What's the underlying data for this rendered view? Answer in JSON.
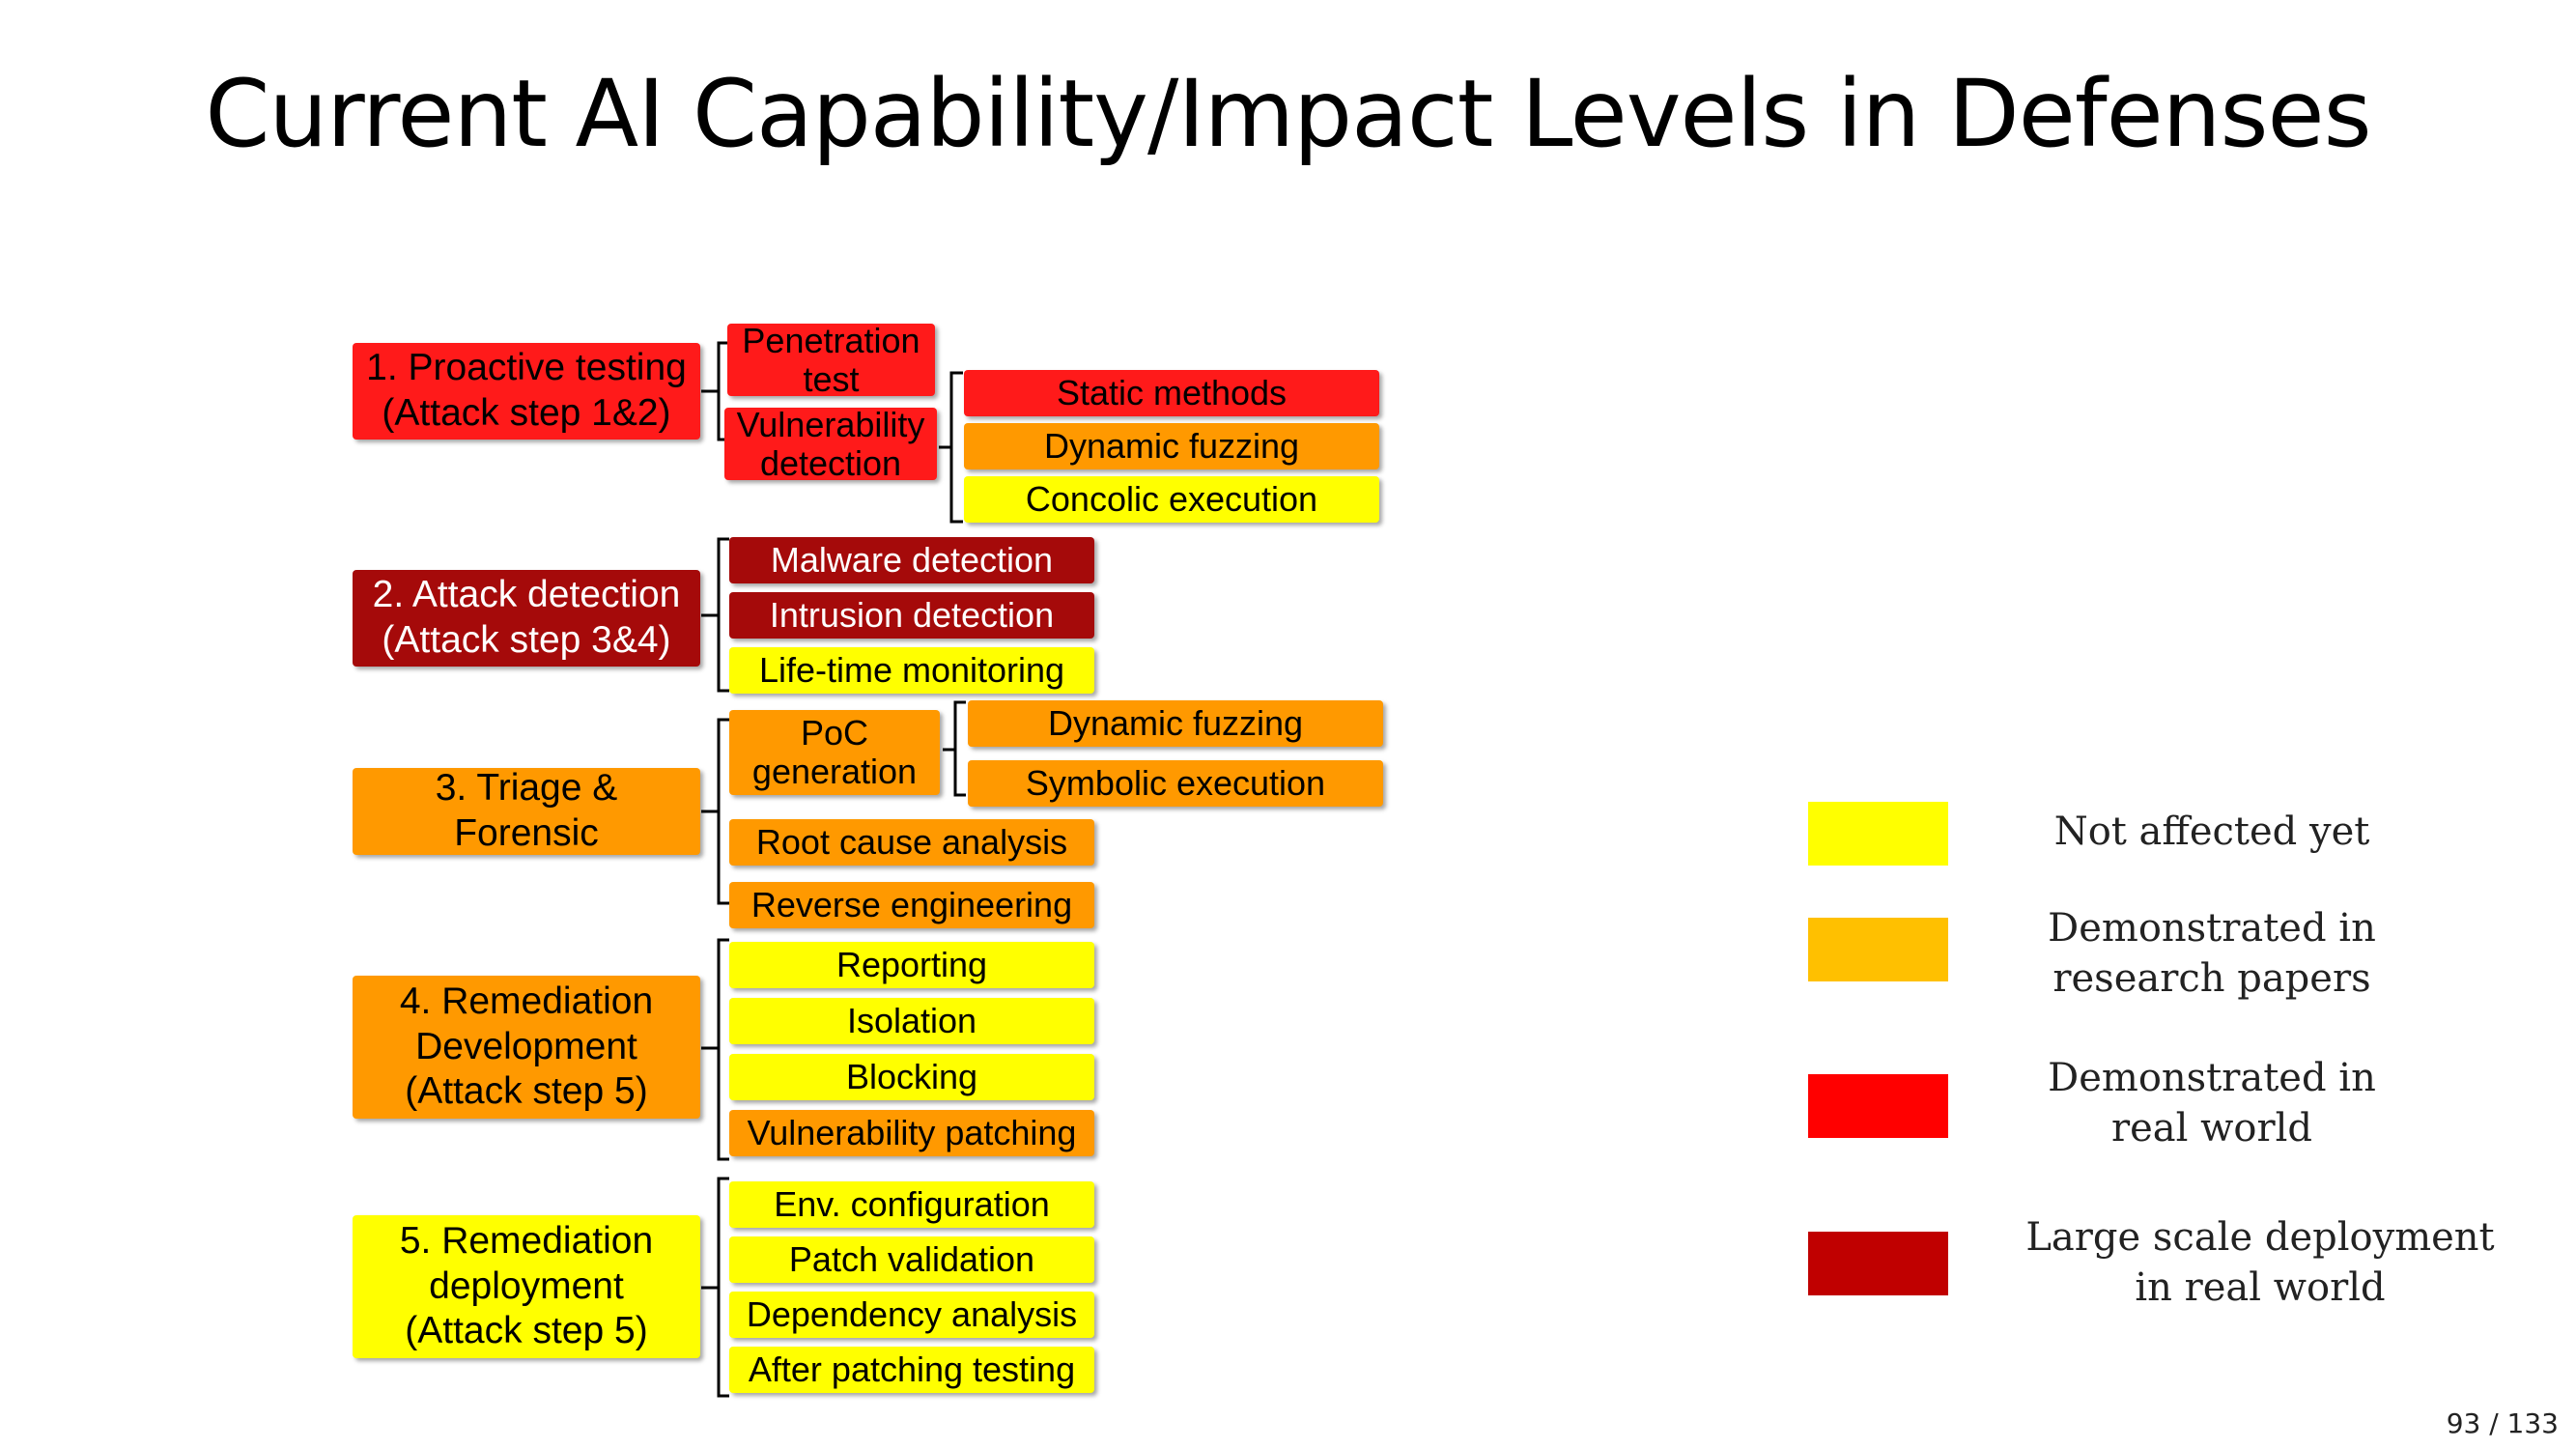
{
  "title": "Current AI Capability/Impact Levels in Defenses",
  "colors": {
    "not_affected": "#ffff00",
    "research": "#ff9900",
    "real_world": "#ff1a1a",
    "large_scale": "#a50a0a"
  },
  "categories": [
    {
      "label": "1. Proactive testing\n(Attack step 1&2)",
      "level": "real_world"
    },
    {
      "label": "2. Attack detection\n(Attack step 3&4)",
      "level": "large_scale"
    },
    {
      "label": "3. Triage &\nForensic",
      "level": "research"
    },
    {
      "label": "4. Remediation\nDevelopment\n(Attack step 5)",
      "level": "research"
    },
    {
      "label": "5. Remediation\ndeployment\n(Attack step 5)",
      "level": "not_affected"
    }
  ],
  "items": [
    {
      "label": "Penetration\ntest",
      "level": "real_world"
    },
    {
      "label": "Vulnerability\ndetection",
      "level": "real_world"
    },
    {
      "label": "Static methods",
      "level": "real_world"
    },
    {
      "label": "Dynamic fuzzing",
      "level": "research"
    },
    {
      "label": "Concolic execution",
      "level": "not_affected"
    },
    {
      "label": "Malware detection",
      "level": "large_scale"
    },
    {
      "label": "Intrusion detection",
      "level": "large_scale"
    },
    {
      "label": "Life-time monitoring",
      "level": "not_affected"
    },
    {
      "label": "PoC\ngeneration",
      "level": "research"
    },
    {
      "label": "Dynamic fuzzing",
      "level": "research"
    },
    {
      "label": "Symbolic execution",
      "level": "research"
    },
    {
      "label": "Root cause analysis",
      "level": "research"
    },
    {
      "label": "Reverse engineering",
      "level": "research"
    },
    {
      "label": "Reporting",
      "level": "not_affected"
    },
    {
      "label": "Isolation",
      "level": "not_affected"
    },
    {
      "label": "Blocking",
      "level": "not_affected"
    },
    {
      "label": "Vulnerability patching",
      "level": "research"
    },
    {
      "label": "Env. configuration",
      "level": "not_affected"
    },
    {
      "label": "Patch validation",
      "level": "not_affected"
    },
    {
      "label": "Dependency analysis",
      "level": "not_affected"
    },
    {
      "label": "After patching testing",
      "level": "not_affected"
    }
  ],
  "legend": [
    {
      "label": "Not affected yet",
      "color": "#ffff00"
    },
    {
      "label": "Demonstrated in\nresearch papers",
      "color": "#ffc000"
    },
    {
      "label": "Demonstrated in\nreal world",
      "color": "#ff0000"
    },
    {
      "label": "Large scale deployment\nin real world",
      "color": "#c00000"
    }
  ],
  "page_number": "93 / 133"
}
